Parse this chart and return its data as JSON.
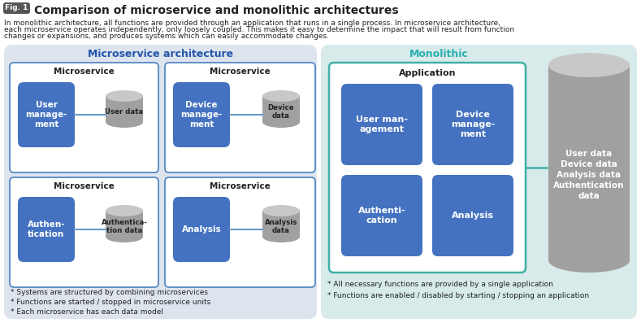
{
  "title_bold": "Comparison of microservice and monolithic architectures",
  "fig_badge": "Fig. 1",
  "description_line1": "In monolithic architecture, all functions are provided through an application that runs in a single process. In microservice architecture,",
  "description_line2": "each microservice operates independently, only loosely coupled. This makes it easy to determine the impact that will result from function",
  "description_line3": "changes or expansions, and produces systems which can easily accommodate changes.",
  "micro_title": "Microservice architecture",
  "mono_title": "Monolithic",
  "micro_bg": "#dde4ee",
  "mono_bg": "#d8eaea",
  "white": "#ffffff",
  "box_border_blue": "#4a7fc0",
  "app_border_teal": "#40b0a8",
  "blue_box_fill": "#4472c0",
  "db_body": "#a0a0a0",
  "db_top": "#c8c8c8",
  "db_line": "#888888",
  "micro_title_color": "#2255aa",
  "mono_title_color": "#2aafaf",
  "text_dark": "#222222",
  "text_white": "#ffffff",
  "badge_bg": "#555555",
  "line_color_blue": "#6699cc",
  "line_color_teal": "#40b0a8",
  "micro_notes": [
    "* Systems are structured by combining microservices",
    "* Functions are started / stopped in microservice units",
    "* Each microservice has each data model"
  ],
  "mono_notes": [
    "* All necessary functions are provided by a single application",
    "* Functions are enabled / disabled by starting / stopping an application"
  ]
}
